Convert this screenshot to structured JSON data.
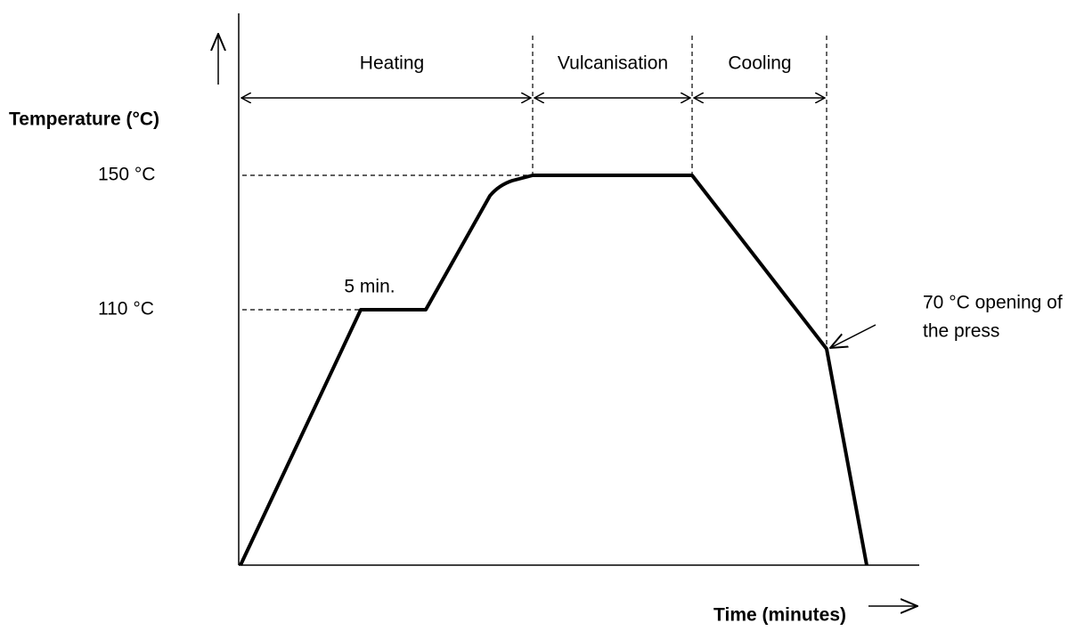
{
  "axes": {
    "y_label": "Temperature (°C)",
    "x_label": "Time (minutes)"
  },
  "levels": [
    "150 °C",
    "110 °C"
  ],
  "phases": [
    "Heating",
    "Vulcanisation",
    "Cooling"
  ],
  "annotations": {
    "hold": "5 min.",
    "opening": [
      "70 °C opening of",
      "the press"
    ]
  }
}
